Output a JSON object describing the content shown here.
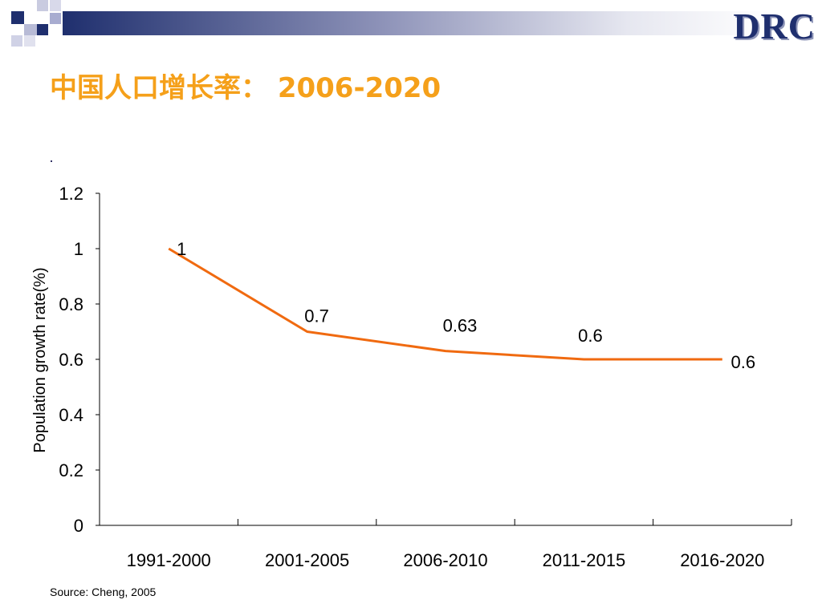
{
  "header": {
    "logo_text": "DRC",
    "title": "中国人口增长率： 2006-2020"
  },
  "footer": {
    "source": "Source: Cheng, 2005"
  },
  "colors": {
    "line": "#f06a10",
    "title": "#f5a01a",
    "banner": "#1f2f6e"
  },
  "chart_data": {
    "type": "line",
    "title": "",
    "xlabel": "",
    "ylabel": "Population growth rate(%)",
    "categories": [
      "1991-2000",
      "2001-2005",
      "2006-2010",
      "2011-2015",
      "2016-2020"
    ],
    "series": [
      {
        "values": [
          1,
          0.7,
          0.63,
          0.6,
          0.6
        ]
      }
    ],
    "data_labels": [
      "1",
      "0.7",
      "0.63",
      "0.6",
      "0.6"
    ],
    "ylim": [
      0,
      1.2
    ],
    "yticks": [
      "0",
      "0.2",
      "0.4",
      "0.6",
      "0.8",
      "1",
      "1.2"
    ],
    "grid": false,
    "legend": "none"
  }
}
